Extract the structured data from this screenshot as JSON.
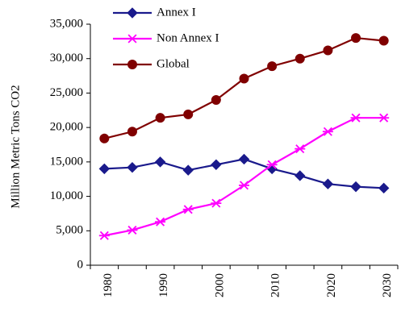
{
  "chart_data": {
    "type": "line",
    "title": "",
    "xlabel": "",
    "ylabel": "Million Metric Tons CO2",
    "x": [
      1980,
      1985,
      1990,
      1995,
      2000,
      2005,
      2010,
      2015,
      2020,
      2025,
      2030
    ],
    "x_tick_labels": [
      "1980",
      "1990",
      "2000",
      "2010",
      "2020",
      "2030"
    ],
    "x_tick_values": [
      1980,
      1990,
      2000,
      2010,
      2020,
      2030
    ],
    "ylim": [
      0,
      35000
    ],
    "y_tick_values": [
      0,
      5000,
      10000,
      15000,
      20000,
      25000,
      30000,
      35000
    ],
    "y_tick_labels": [
      "0",
      "5,000",
      "10,000",
      "15,000",
      "20,000",
      "25,000",
      "30,000",
      "35,000"
    ],
    "grid": false,
    "legend_position": "top-center",
    "series": [
      {
        "name": "Annex I",
        "color": "#1a1a8c",
        "marker": "diamond",
        "values": [
          14000,
          14200,
          15000,
          13800,
          14600,
          15400,
          14000,
          13000,
          11800,
          11400,
          11200
        ]
      },
      {
        "name": "Non Annex I",
        "color": "#ff00ff",
        "marker": "asterisk",
        "values": [
          4300,
          5100,
          6300,
          8100,
          9000,
          11600,
          14600,
          16900,
          19400,
          21400,
          21400
        ]
      },
      {
        "name": "Global",
        "color": "#800000",
        "marker": "circle",
        "values": [
          18400,
          19400,
          21400,
          21900,
          24000,
          27100,
          28900,
          30000,
          31200,
          33000,
          32600
        ]
      }
    ]
  }
}
